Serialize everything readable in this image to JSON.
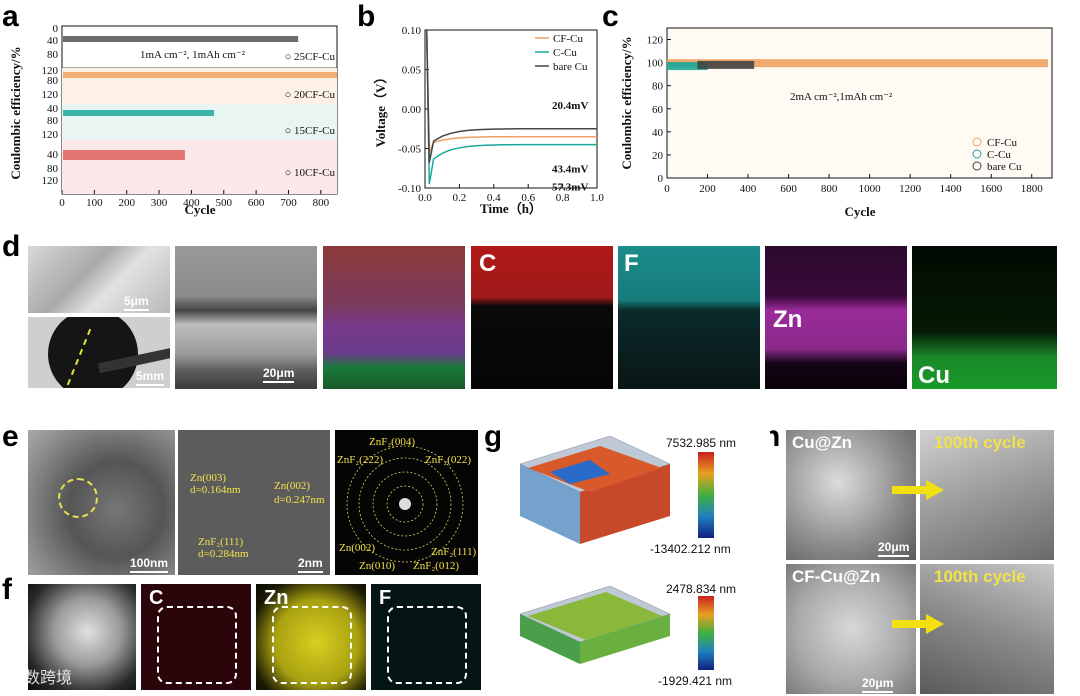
{
  "panels": {
    "a": "a",
    "b": "b",
    "c": "c",
    "d": "d",
    "e": "e",
    "f": "f",
    "g": "g",
    "h": "h"
  },
  "chart_data": [
    {
      "id": "a",
      "type": "scatter",
      "title": "",
      "xlabel": "Cycle",
      "ylabel": "Coulombic efficiency/%",
      "xlim": [
        0,
        850
      ],
      "xticks": [
        0,
        100,
        200,
        300,
        400,
        500,
        600,
        700,
        800
      ],
      "yticks": [
        0,
        40,
        80,
        120
      ],
      "yticks_labels": [
        "0",
        "40",
        "80",
        "120",
        "80",
        "120",
        "40",
        "80",
        "120",
        "40",
        "80",
        "120"
      ],
      "annotation": "1mA cm⁻², 1mAh cm⁻²",
      "series": [
        {
          "name": "25CF-Cu",
          "color": "#555555",
          "cycle_end": 730,
          "ce": 99.5
        },
        {
          "name": "20CF-Cu",
          "color": "#f0a060",
          "cycle_end": 850,
          "ce": 99.6
        },
        {
          "name": "15CF-Cu",
          "color": "#1aa89a",
          "cycle_end": 470,
          "ce": 99.0
        },
        {
          "name": "10CF-Cu",
          "color": "#e06060",
          "cycle_end": 380,
          "ce": 98.0
        }
      ]
    },
    {
      "id": "b",
      "type": "line",
      "xlabel": "Time（h）",
      "ylabel": "Voltage（V）",
      "xlim": [
        0,
        1.0
      ],
      "ylim": [
        -0.1,
        0.1
      ],
      "xticks": [
        "0.0",
        "0.2",
        "0.4",
        "0.6",
        "0.8",
        "1.0"
      ],
      "yticks": [
        "0.10",
        "0.05",
        "0.00",
        "-0.05",
        "-0.10"
      ],
      "series": [
        {
          "name": "CF-Cu",
          "color": "#f0a060",
          "plateau": -0.035,
          "nucleation": -0.055
        },
        {
          "name": "C-Cu",
          "color": "#1aa89a",
          "plateau": -0.045,
          "nucleation": -0.095
        },
        {
          "name": "bare Cu",
          "color": "#444444",
          "plateau": -0.025,
          "nucleation": -0.068
        }
      ],
      "annotations": [
        "20.4mV",
        "43.4mV",
        "57.3mV"
      ]
    },
    {
      "id": "c",
      "type": "scatter",
      "xlabel": "Cycle",
      "ylabel": "Coulombic efficiency/%",
      "xlim": [
        0,
        1900
      ],
      "ylim": [
        0,
        130
      ],
      "xticks": [
        "0",
        "200",
        "400",
        "600",
        "800",
        "1000",
        "1200",
        "1400",
        "1600",
        "1800"
      ],
      "yticks": [
        "0",
        "20",
        "40",
        "60",
        "80",
        "100",
        "120"
      ],
      "annotation": "2mA cm⁻²,1mAh cm⁻²",
      "series": [
        {
          "name": "CF-Cu",
          "color": "#f0a060",
          "cycle_end": 1880,
          "ce": 99.5
        },
        {
          "name": "C-Cu",
          "color": "#1aa89a",
          "cycle_end": 200,
          "ce": 97
        },
        {
          "name": "bare Cu",
          "color": "#444444",
          "cycle_end": 430,
          "ce": 98
        }
      ]
    }
  ],
  "d": {
    "scale_top": "5μm",
    "scale_bottom": "5mm",
    "scale_cross": "20μm",
    "maps": [
      "C",
      "F",
      "Zn",
      "Cu"
    ]
  },
  "e": {
    "scale_tem": "100nm",
    "scale_hr": "2nm",
    "hr_labels": [
      "Zn(003)",
      "d=0.164nm",
      "Zn(002)",
      "d=0.247nm",
      "ZnF₂(111)",
      "d=0.284nm"
    ],
    "saed_labels": [
      "ZnF₂(004)",
      "ZnF₂(222)",
      "ZnF₂(022)",
      "Zn(002)",
      "Zn(010)",
      "ZnF₂(111)",
      "ZnF₂(012)"
    ]
  },
  "f": {
    "maps": [
      "C",
      "Zn",
      "F"
    ]
  },
  "g": {
    "top_max": "7532.985 nm",
    "top_min": "-13402.212 nm",
    "bottom_max": "2478.834 nm",
    "bottom_min": "-1929.421 nm"
  },
  "h": {
    "labels": [
      "Cu@Zn",
      "100th cycle",
      "CF-Cu@Zn",
      "100th cycle"
    ],
    "scale1": "20μm",
    "scale2": "20μm"
  },
  "watermark": "大数跨境"
}
